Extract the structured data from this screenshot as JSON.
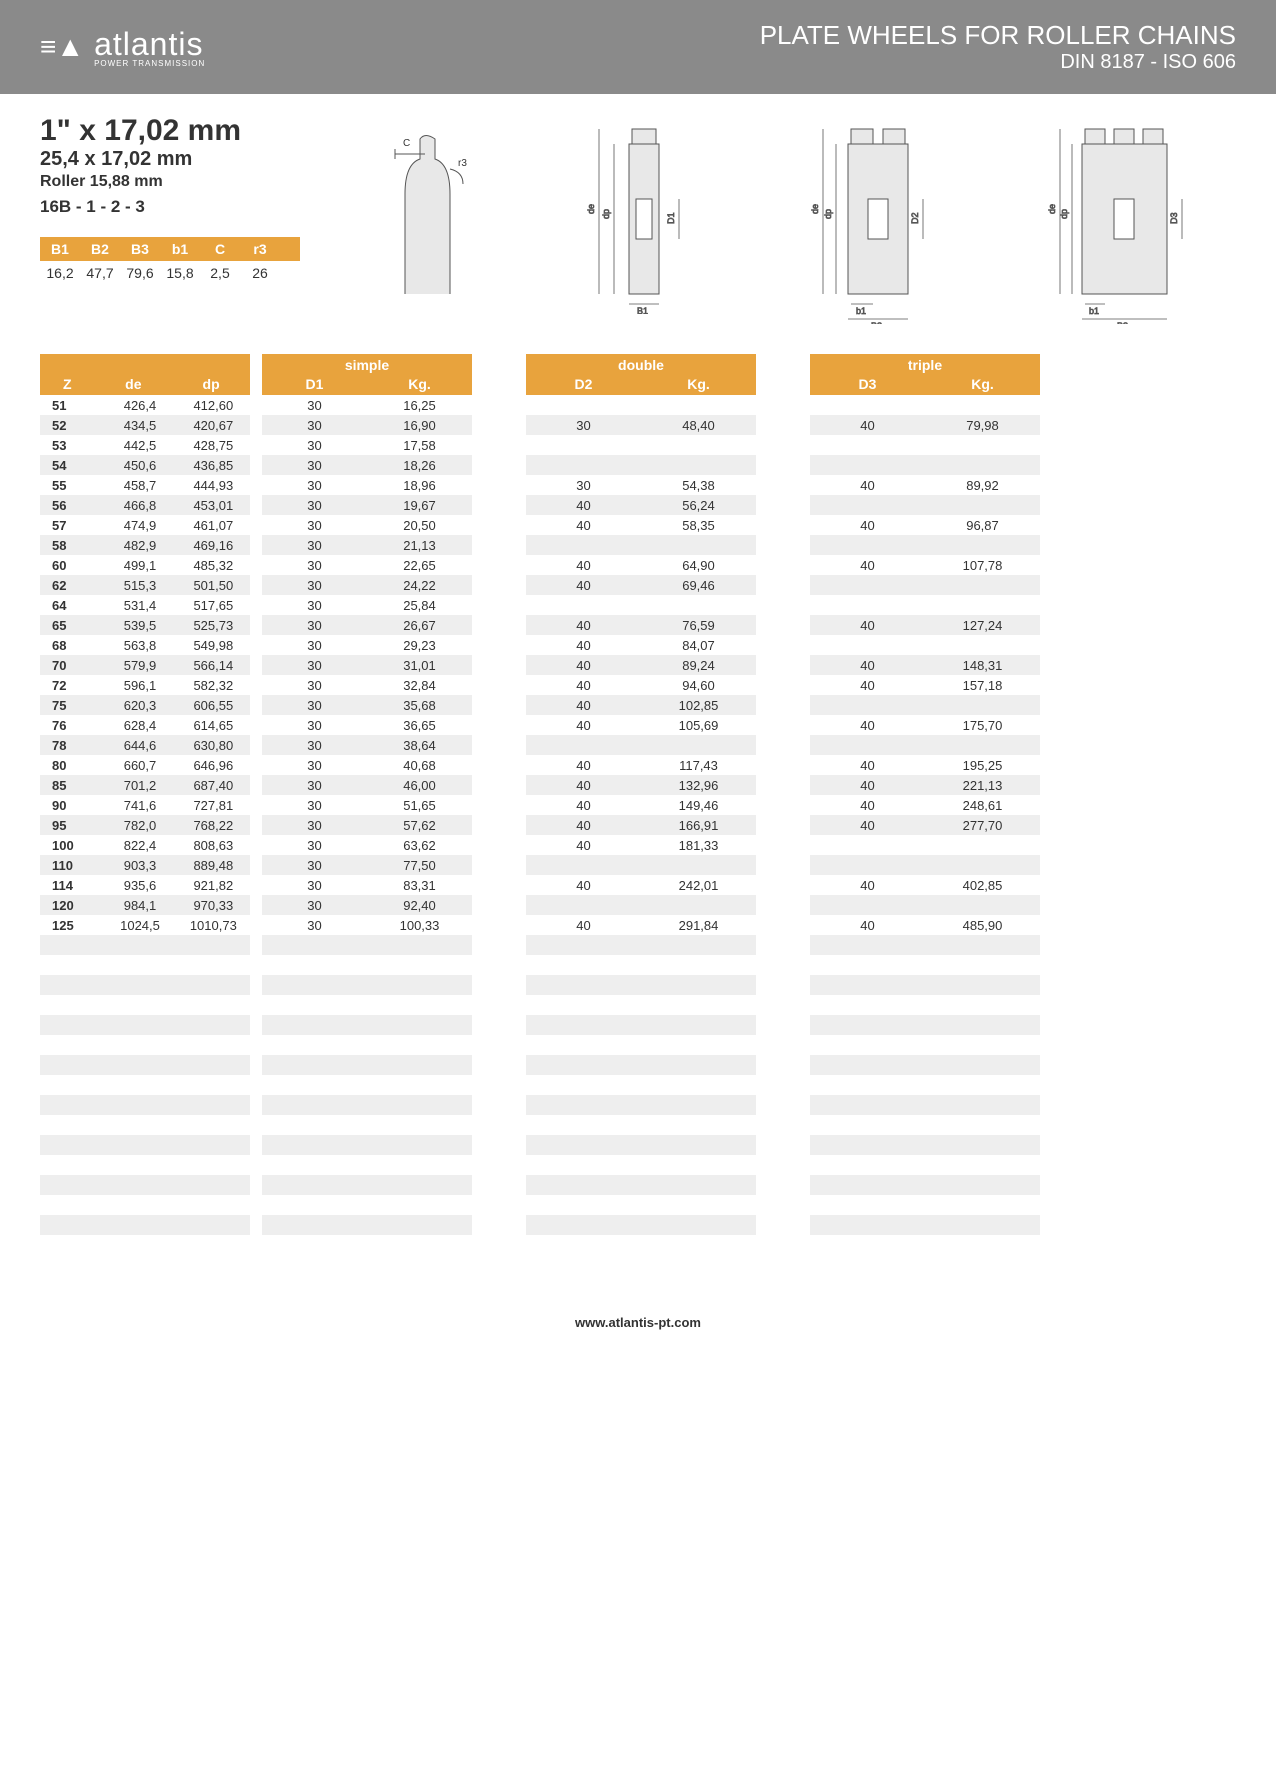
{
  "banner": {
    "logo_text": "atlantis",
    "logo_sub": "POWER TRANSMISSION",
    "title1": "PLATE WHEELS FOR ROLLER CHAINS",
    "title2": "DIN 8187 - ISO 606"
  },
  "spec": {
    "h1": "1\" x 17,02 mm",
    "h2": "25,4 x 17,02 mm",
    "h3": "Roller 15,88 mm",
    "h4": "16B - 1 - 2 - 3"
  },
  "dims": {
    "headers": [
      "B1",
      "B2",
      "B3",
      "b1",
      "C",
      "r3"
    ],
    "values": [
      "16,2",
      "47,7",
      "79,6",
      "15,8",
      "2,5",
      "26"
    ]
  },
  "colors": {
    "orange": "#e8a33d",
    "grey": "#8a8a8a",
    "row_even": "#eeeeee"
  },
  "groups": {
    "base": {
      "sub": [
        "Z",
        "de",
        "dp"
      ]
    },
    "simple": {
      "title": "simple",
      "sub": [
        "D1",
        "Kg."
      ]
    },
    "double": {
      "title": "double",
      "sub": [
        "D2",
        "Kg."
      ]
    },
    "triple": {
      "title": "triple",
      "sub": [
        "D3",
        "Kg."
      ]
    }
  },
  "rows": [
    {
      "z": "51",
      "de": "426,4",
      "dp": "412,60",
      "d1": "30",
      "kg1": "16,25",
      "d2": "",
      "kg2": "",
      "d3": "",
      "kg3": ""
    },
    {
      "z": "52",
      "de": "434,5",
      "dp": "420,67",
      "d1": "30",
      "kg1": "16,90",
      "d2": "30",
      "kg2": "48,40",
      "d3": "40",
      "kg3": "79,98"
    },
    {
      "z": "53",
      "de": "442,5",
      "dp": "428,75",
      "d1": "30",
      "kg1": "17,58",
      "d2": "",
      "kg2": "",
      "d3": "",
      "kg3": ""
    },
    {
      "z": "54",
      "de": "450,6",
      "dp": "436,85",
      "d1": "30",
      "kg1": "18,26",
      "d2": "",
      "kg2": "",
      "d3": "",
      "kg3": ""
    },
    {
      "z": "55",
      "de": "458,7",
      "dp": "444,93",
      "d1": "30",
      "kg1": "18,96",
      "d2": "30",
      "kg2": "54,38",
      "d3": "40",
      "kg3": "89,92"
    },
    {
      "z": "56",
      "de": "466,8",
      "dp": "453,01",
      "d1": "30",
      "kg1": "19,67",
      "d2": "40",
      "kg2": "56,24",
      "d3": "",
      "kg3": ""
    },
    {
      "z": "57",
      "de": "474,9",
      "dp": "461,07",
      "d1": "30",
      "kg1": "20,50",
      "d2": "40",
      "kg2": "58,35",
      "d3": "40",
      "kg3": "96,87"
    },
    {
      "z": "58",
      "de": "482,9",
      "dp": "469,16",
      "d1": "30",
      "kg1": "21,13",
      "d2": "",
      "kg2": "",
      "d3": "",
      "kg3": ""
    },
    {
      "z": "60",
      "de": "499,1",
      "dp": "485,32",
      "d1": "30",
      "kg1": "22,65",
      "d2": "40",
      "kg2": "64,90",
      "d3": "40",
      "kg3": "107,78"
    },
    {
      "z": "62",
      "de": "515,3",
      "dp": "501,50",
      "d1": "30",
      "kg1": "24,22",
      "d2": "40",
      "kg2": "69,46",
      "d3": "",
      "kg3": ""
    },
    {
      "z": "64",
      "de": "531,4",
      "dp": "517,65",
      "d1": "30",
      "kg1": "25,84",
      "d2": "",
      "kg2": "",
      "d3": "",
      "kg3": ""
    },
    {
      "z": "65",
      "de": "539,5",
      "dp": "525,73",
      "d1": "30",
      "kg1": "26,67",
      "d2": "40",
      "kg2": "76,59",
      "d3": "40",
      "kg3": "127,24"
    },
    {
      "z": "68",
      "de": "563,8",
      "dp": "549,98",
      "d1": "30",
      "kg1": "29,23",
      "d2": "40",
      "kg2": "84,07",
      "d3": "",
      "kg3": ""
    },
    {
      "z": "70",
      "de": "579,9",
      "dp": "566,14",
      "d1": "30",
      "kg1": "31,01",
      "d2": "40",
      "kg2": "89,24",
      "d3": "40",
      "kg3": "148,31"
    },
    {
      "z": "72",
      "de": "596,1",
      "dp": "582,32",
      "d1": "30",
      "kg1": "32,84",
      "d2": "40",
      "kg2": "94,60",
      "d3": "40",
      "kg3": "157,18"
    },
    {
      "z": "75",
      "de": "620,3",
      "dp": "606,55",
      "d1": "30",
      "kg1": "35,68",
      "d2": "40",
      "kg2": "102,85",
      "d3": "",
      "kg3": ""
    },
    {
      "z": "76",
      "de": "628,4",
      "dp": "614,65",
      "d1": "30",
      "kg1": "36,65",
      "d2": "40",
      "kg2": "105,69",
      "d3": "40",
      "kg3": "175,70"
    },
    {
      "z": "78",
      "de": "644,6",
      "dp": "630,80",
      "d1": "30",
      "kg1": "38,64",
      "d2": "",
      "kg2": "",
      "d3": "",
      "kg3": ""
    },
    {
      "z": "80",
      "de": "660,7",
      "dp": "646,96",
      "d1": "30",
      "kg1": "40,68",
      "d2": "40",
      "kg2": "117,43",
      "d3": "40",
      "kg3": "195,25"
    },
    {
      "z": "85",
      "de": "701,2",
      "dp": "687,40",
      "d1": "30",
      "kg1": "46,00",
      "d2": "40",
      "kg2": "132,96",
      "d3": "40",
      "kg3": "221,13"
    },
    {
      "z": "90",
      "de": "741,6",
      "dp": "727,81",
      "d1": "30",
      "kg1": "51,65",
      "d2": "40",
      "kg2": "149,46",
      "d3": "40",
      "kg3": "248,61"
    },
    {
      "z": "95",
      "de": "782,0",
      "dp": "768,22",
      "d1": "30",
      "kg1": "57,62",
      "d2": "40",
      "kg2": "166,91",
      "d3": "40",
      "kg3": "277,70"
    },
    {
      "z": "100",
      "de": "822,4",
      "dp": "808,63",
      "d1": "30",
      "kg1": "63,62",
      "d2": "40",
      "kg2": "181,33",
      "d3": "",
      "kg3": ""
    },
    {
      "z": "110",
      "de": "903,3",
      "dp": "889,48",
      "d1": "30",
      "kg1": "77,50",
      "d2": "",
      "kg2": "",
      "d3": "",
      "kg3": ""
    },
    {
      "z": "114",
      "de": "935,6",
      "dp": "921,82",
      "d1": "30",
      "kg1": "83,31",
      "d2": "40",
      "kg2": "242,01",
      "d3": "40",
      "kg3": "402,85"
    },
    {
      "z": "120",
      "de": "984,1",
      "dp": "970,33",
      "d1": "30",
      "kg1": "92,40",
      "d2": "",
      "kg2": "",
      "d3": "",
      "kg3": ""
    },
    {
      "z": "125",
      "de": "1024,5",
      "dp": "1010,73",
      "d1": "30",
      "kg1": "100,33",
      "d2": "40",
      "kg2": "291,84",
      "d3": "40",
      "kg3": "485,90"
    }
  ],
  "empty_rows": 16,
  "footer": "www.atlantis-pt.com"
}
